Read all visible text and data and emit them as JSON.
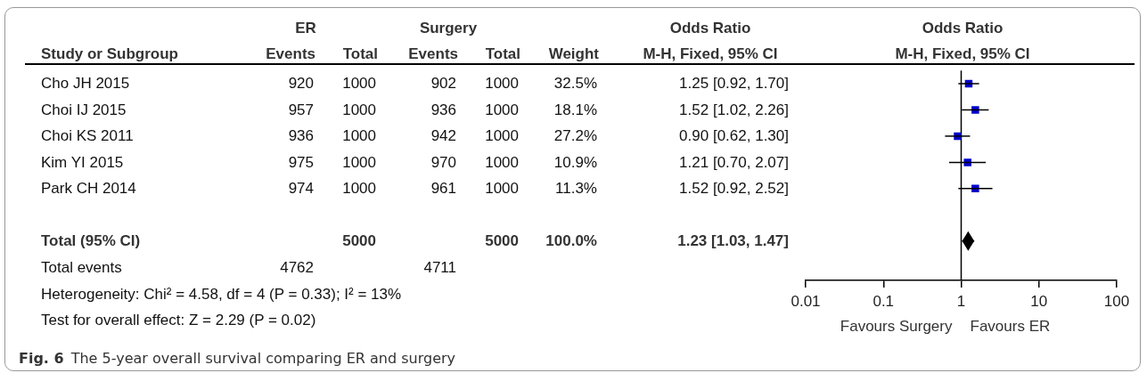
{
  "chart_data": [
    {
      "type": "other",
      "data_labels": true,
      "ylabel": "Study or Subgroup",
      "categories": [
        "Cho JH 2015",
        "Choi IJ 2015",
        "Choi KS 2011",
        "Kim YI 2015",
        "Park CH 2014",
        null,
        "Total (95% CI)",
        "Total events"
      ],
      "series": [
        {
          "name": "Events",
          "values": [
            920,
            957,
            936,
            975,
            974,
            null,
            null,
            4762
          ]
        },
        {
          "name": "Total",
          "values": [
            1000,
            1000,
            1000,
            1000,
            1000,
            null,
            5000,
            null
          ]
        },
        {
          "name": "Events",
          "values": [
            902,
            936,
            942,
            970,
            961,
            null,
            null,
            4711
          ]
        },
        {
          "name": "Total",
          "values": [
            1000,
            1000,
            1000,
            1000,
            1000,
            null,
            5000,
            null
          ]
        },
        {
          "name": "Weight",
          "values": [
            32.5,
            18.1,
            27.2,
            10.9,
            11.3,
            null,
            100.0,
            null
          ],
          "value_labels": [
            "32.5%",
            "18.1%",
            "27.2%",
            "10.9%",
            "11.3%",
            null,
            "100.0%",
            null
          ]
        },
        {
          "name": "M-H, Fixed, 95% CI",
          "values": [
            1.25,
            1.52,
            0.9,
            1.21,
            1.52,
            null,
            1.23,
            null
          ],
          "value_labels": [
            "1.25 [0.92, 1.70]",
            "1.52 [1.02, 2.26]",
            "0.90 [0.62, 1.30]",
            "1.21 [0.70, 2.07]",
            "1.52 [0.92, 2.52]",
            null,
            "1.23 [1.03, 1.47]",
            null
          ]
        }
      ],
      "annotations": [
        "ER",
        "Surgery",
        "Odds Ratio",
        "Heterogeneity: Chi² = 4.58, df = 4 (P = 0.33); I² = 13%",
        "Test for overall effect: Z = 2.29 (P = 0.02)"
      ],
      "title": "Fig. 6",
      "subtitle": "The 5-year overall survival comparing ER and surgery"
    },
    {
      "type": "scatter",
      "orientation": "horizontal",
      "title": "Odds Ratio",
      "subtitle": "M-H, Fixed, 95% CI",
      "categories": [
        null,
        null,
        null,
        null,
        null,
        null,
        null,
        null
      ],
      "series": [
        {
          "color": "#0000cc",
          "marker": "square",
          "values": [
            1.25,
            1.52,
            0.9,
            1.21,
            1.52,
            null,
            null,
            null
          ],
          "errors": [
            [
              0.92,
              1.7
            ],
            [
              1.02,
              2.26
            ],
            [
              0.62,
              1.3
            ],
            [
              0.7,
              2.07
            ],
            [
              0.92,
              2.52
            ],
            null,
            null,
            null
          ]
        },
        {
          "color": "#000000",
          "marker": "diamond",
          "values": [
            null,
            null,
            null,
            null,
            null,
            null,
            1.23,
            null
          ],
          "errors": [
            null,
            null,
            null,
            null,
            null,
            null,
            [
              1.03,
              1.47
            ],
            null
          ]
        }
      ],
      "log": "x",
      "xlim": [
        0.01,
        100
      ],
      "xticks": [
        0.01,
        0.1,
        1,
        10,
        100
      ],
      "tick_labels": "x",
      "ref_lines": [
        {
          "axis": "x",
          "value": 1,
          "color": "#000000"
        }
      ],
      "annotations": [
        "Favours Surgery",
        "Favours ER"
      ]
    }
  ]
}
